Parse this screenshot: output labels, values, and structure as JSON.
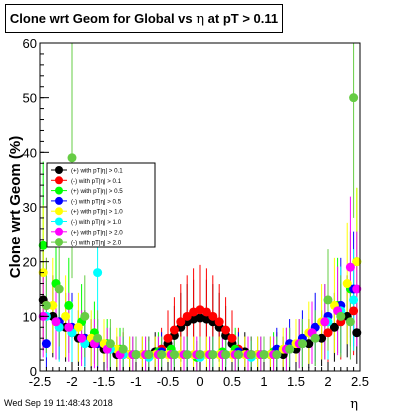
{
  "title": {
    "prefix": "Clone wrt Geom for Global vs",
    "symbol": "η",
    "suffix": "at pT  > 0.11"
  },
  "footer": {
    "timestamp": "Wed Sep 19 11:48:43 2018"
  },
  "chart_data": {
    "type": "scatter",
    "title": "Clone wrt Geom for Global vs η at pT > 0.11",
    "xlabel": "η",
    "ylabel": "Clone wrt Geom (%)",
    "xlim": [
      -2.5,
      2.5
    ],
    "ylim": [
      0,
      60
    ],
    "x_ticks": [
      -2.5,
      -2,
      -1.5,
      -1,
      -0.5,
      0,
      0.5,
      1,
      1.5,
      2,
      2.5
    ],
    "x_tick_labels": [
      "-2.5",
      "-2",
      "-1.5",
      "-1",
      "-0.5",
      "0",
      "0.5",
      "1",
      "1.5",
      "2",
      "2.5"
    ],
    "y_ticks": [
      0,
      10,
      20,
      30,
      40,
      50,
      60
    ],
    "y_tick_labels": [
      "0",
      "10",
      "20",
      "30",
      "40",
      "50",
      "60"
    ],
    "grid": false,
    "legend_position": "left",
    "series": [
      {
        "name": "(+) with pT|η| > 0.1",
        "color": "#000000",
        "x": [
          -2.45,
          -2.3,
          -2.1,
          -1.9,
          -1.7,
          -1.5,
          -1.3,
          -1.1,
          -0.9,
          -0.7,
          -0.5,
          -0.4,
          -0.3,
          -0.2,
          -0.1,
          0,
          0.1,
          0.2,
          0.3,
          0.4,
          0.5,
          0.7,
          0.9,
          1.1,
          1.3,
          1.5,
          1.7,
          1.9,
          2.1,
          2.3,
          2.45
        ],
        "y": [
          13,
          10,
          8,
          6,
          5,
          4,
          3,
          3,
          3,
          3.5,
          5,
          6.5,
          8,
          9,
          9.5,
          9.7,
          9.5,
          9,
          8,
          6.5,
          5,
          3.5,
          3,
          3,
          3,
          4,
          5,
          6,
          8,
          10,
          7
        ]
      },
      {
        "name": "(-) with pT|η| > 0.1",
        "color": "#ff0000",
        "x": [
          -2.4,
          -2.2,
          -2,
          -1.8,
          -1.6,
          -1.4,
          -1.2,
          -1,
          -0.8,
          -0.6,
          -0.5,
          -0.4,
          -0.3,
          -0.2,
          -0.1,
          0,
          0.1,
          0.2,
          0.3,
          0.4,
          0.5,
          0.6,
          0.8,
          1,
          1.2,
          1.4,
          1.6,
          1.8,
          2,
          2.2,
          2.4
        ],
        "y": [
          12,
          9,
          7,
          6,
          5,
          4,
          3.5,
          3,
          3,
          4,
          6,
          7.5,
          9,
          10,
          10.8,
          11.2,
          10.8,
          10,
          9,
          7.5,
          6,
          4,
          3,
          3,
          3.5,
          4,
          5,
          6,
          7,
          9,
          11
        ]
      },
      {
        "name": "(+) with pT|η| > 0.5",
        "color": "#00ff00",
        "x": [
          -2.45,
          -2.25,
          -2.05,
          -1.85,
          -1.65,
          -1.45,
          -1.25,
          -1.05,
          -0.85,
          -0.65,
          -0.45,
          -0.25,
          -0.05,
          0.15,
          0.35,
          0.55,
          0.75,
          0.95,
          1.15,
          1.35,
          1.55,
          1.75,
          1.95,
          2.15,
          2.35,
          2.45
        ],
        "y": [
          23,
          16,
          12,
          9,
          7,
          5,
          4,
          3,
          3,
          3.5,
          4,
          3,
          2.5,
          3,
          3.5,
          4,
          3,
          3,
          3.5,
          4,
          5,
          7,
          9,
          12,
          15,
          20
        ]
      },
      {
        "name": "(-) with pT|η| > 0.5",
        "color": "#0000ff",
        "x": [
          -2.4,
          -2.2,
          -2,
          -1.8,
          -1.6,
          -1.4,
          -1.2,
          -1,
          -0.8,
          -0.6,
          -0.4,
          -0.2,
          0,
          0.2,
          0.4,
          0.6,
          0.8,
          1,
          1.2,
          1.4,
          1.6,
          1.8,
          2,
          2.2,
          2.4
        ],
        "y": [
          5,
          9,
          8,
          6,
          5,
          4,
          3,
          3,
          3,
          3.5,
          3,
          3,
          3,
          3,
          3,
          3.5,
          3,
          3,
          4,
          5,
          6,
          8,
          10,
          12,
          15
        ]
      },
      {
        "name": "(+) with pT|η| > 1.0",
        "color": "#ffff00",
        "x": [
          -2.45,
          -2.3,
          -2.1,
          -1.9,
          -1.7,
          -1.5,
          -1.3,
          -1.1,
          -0.9,
          -0.7,
          -0.5,
          -0.3,
          -0.1,
          0.1,
          0.3,
          0.5,
          0.7,
          0.9,
          1.1,
          1.3,
          1.5,
          1.7,
          1.9,
          2.1,
          2.3,
          2.45
        ],
        "y": [
          18,
          12,
          10,
          8,
          6,
          5,
          4,
          3,
          3,
          3,
          3,
          3,
          3,
          3,
          3,
          3,
          3,
          3,
          3,
          4,
          5,
          7,
          9,
          12,
          16,
          20
        ]
      },
      {
        "name": "(-) with pT|η| > 1.0",
        "color": "#00ffff",
        "x": [
          -2.4,
          -2.2,
          -2,
          -1.8,
          -1.6,
          -1.4,
          -1.2,
          -1,
          -0.8,
          -0.6,
          -0.4,
          -0.2,
          0,
          0.2,
          0.4,
          0.6,
          0.8,
          1,
          1.2,
          1.4,
          1.6,
          1.8,
          2,
          2.2,
          2.4
        ],
        "y": [
          10,
          8,
          7,
          5,
          18,
          4,
          3,
          3,
          2.5,
          3,
          3,
          3,
          2.5,
          3,
          3,
          3,
          2.5,
          3,
          3,
          4,
          5,
          6,
          9,
          11,
          13
        ]
      },
      {
        "name": "(+) with pT|η| > 2.0",
        "color": "#ff00ff",
        "x": [
          -2.45,
          -2.25,
          -2.05,
          -1.85,
          -1.65,
          -1.45,
          -1.25,
          -1.05,
          -0.85,
          -0.65,
          -0.45,
          -0.25,
          -0.05,
          0.15,
          0.35,
          0.55,
          0.75,
          0.95,
          1.15,
          1.35,
          1.55,
          1.75,
          1.95,
          2.15,
          2.35,
          2.45
        ],
        "y": [
          10,
          9,
          8,
          6,
          5,
          4,
          3,
          3,
          3,
          3,
          3,
          3,
          3,
          3,
          3,
          3,
          3,
          3,
          3,
          4,
          5,
          7,
          9,
          11,
          19,
          15
        ]
      },
      {
        "name": "(-) with pT|η| > 2.0",
        "color": "#66cc44",
        "x": [
          -2.4,
          -2.2,
          -2,
          -1.8,
          -1.6,
          -1.4,
          -1.2,
          -1,
          -0.8,
          -0.6,
          -0.4,
          -0.2,
          0,
          0.2,
          0.4,
          0.6,
          0.8,
          1,
          1.2,
          1.4,
          1.6,
          1.8,
          2,
          2.2,
          2.35,
          2.4
        ],
        "y": [
          12,
          15,
          39,
          10,
          6,
          5,
          4,
          3,
          3,
          3,
          3,
          3,
          3,
          3,
          3,
          3,
          3,
          3,
          3,
          4,
          5,
          6,
          13,
          10,
          9,
          50
        ]
      }
    ]
  }
}
